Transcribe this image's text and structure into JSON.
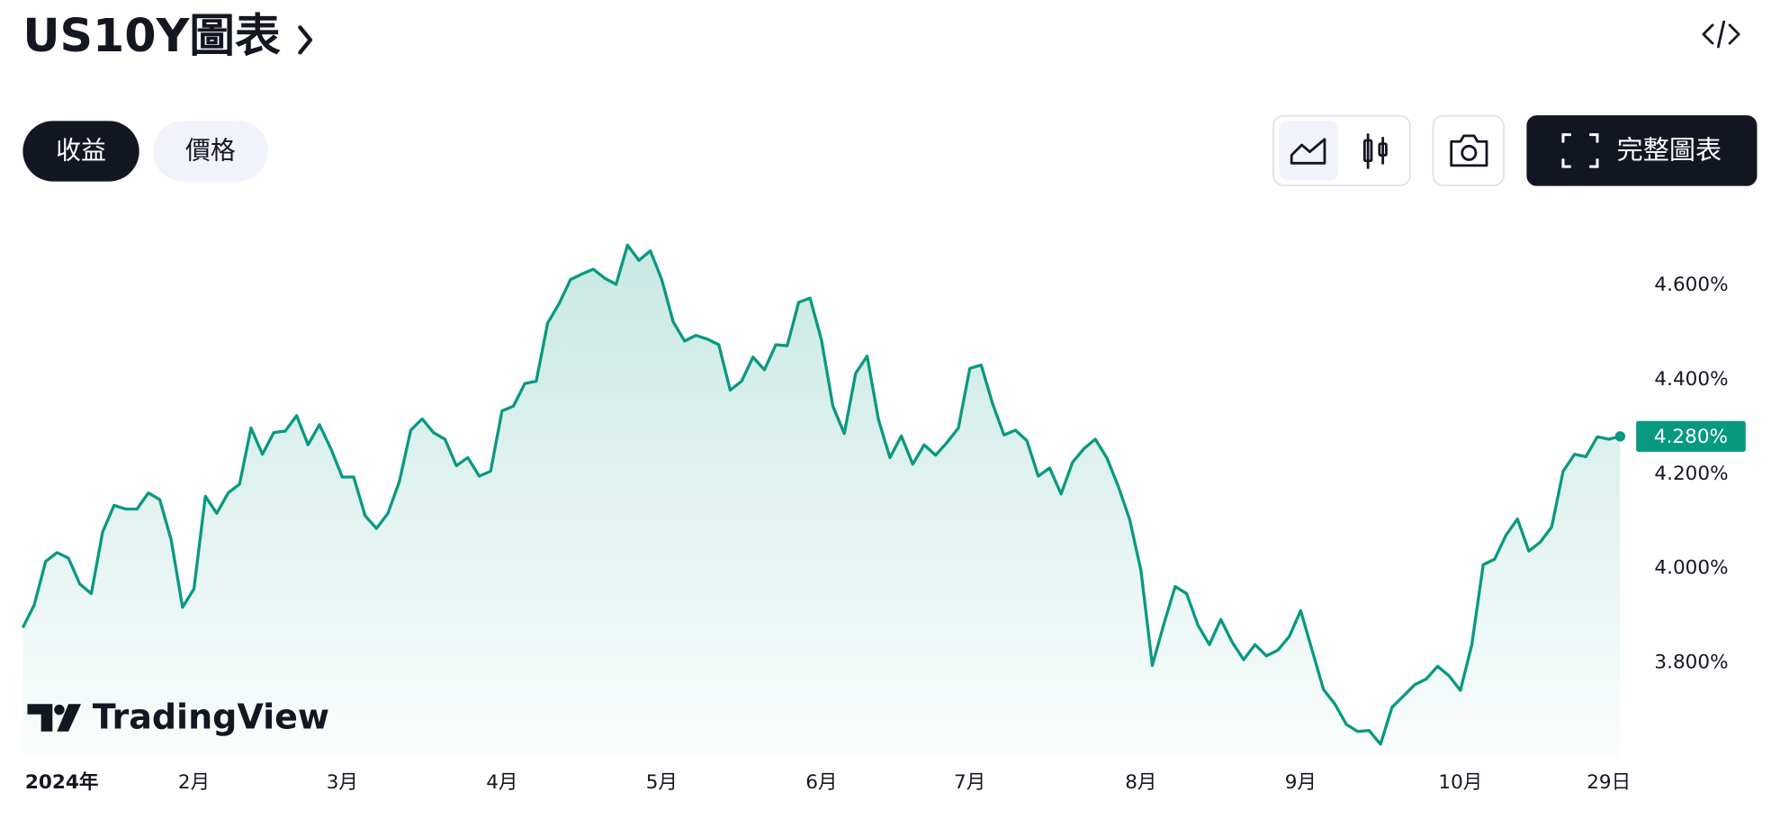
{
  "header": {
    "title": "US10Y圖表"
  },
  "tabs": [
    "收益",
    "價格"
  ],
  "full_chart_button": "完整圖表",
  "watermark": "TradingView",
  "chart_data": {
    "type": "area",
    "color": "#089981",
    "grid": false,
    "categories": [
      "2024年",
      null,
      null,
      null,
      null,
      null,
      null,
      null,
      null,
      null,
      null,
      null,
      null,
      null,
      null,
      "2月",
      null,
      null,
      null,
      null,
      null,
      null,
      null,
      null,
      null,
      null,
      null,
      null,
      "3月",
      null,
      null,
      null,
      null,
      null,
      null,
      null,
      null,
      null,
      null,
      null,
      null,
      null,
      "4月",
      null,
      null,
      null,
      null,
      null,
      null,
      null,
      null,
      null,
      null,
      null,
      null,
      null,
      "5月",
      null,
      null,
      null,
      null,
      null,
      null,
      null,
      null,
      null,
      null,
      null,
      null,
      null,
      "6月",
      null,
      null,
      null,
      null,
      null,
      null,
      null,
      null,
      null,
      null,
      null,
      null,
      "7月",
      null,
      null,
      null,
      null,
      null,
      null,
      null,
      null,
      null,
      null,
      null,
      null,
      null,
      null,
      "8月",
      null,
      null,
      null,
      null,
      null,
      null,
      null,
      null,
      null,
      null,
      null,
      null,
      null,
      "9月",
      null,
      null,
      null,
      null,
      null,
      null,
      null,
      null,
      null,
      null,
      null,
      null,
      null,
      "10月",
      null,
      null,
      null,
      null,
      null,
      null,
      null,
      null,
      null,
      null,
      null,
      null,
      "29日",
      null
    ],
    "values": [
      3.875,
      3.923,
      4.015,
      4.034,
      4.022,
      3.967,
      3.947,
      4.078,
      4.134,
      4.126,
      4.126,
      4.16,
      4.146,
      4.061,
      3.918,
      3.957,
      4.153,
      4.117,
      4.16,
      4.179,
      4.298,
      4.242,
      4.288,
      4.291,
      4.324,
      4.262,
      4.305,
      4.254,
      4.194,
      4.194,
      4.112,
      4.085,
      4.117,
      4.184,
      4.293,
      4.317,
      4.288,
      4.274,
      4.218,
      4.235,
      4.196,
      4.206,
      4.334,
      4.344,
      4.392,
      4.397,
      4.52,
      4.561,
      4.612,
      4.624,
      4.634,
      4.615,
      4.602,
      4.685,
      4.653,
      4.673,
      4.612,
      4.523,
      4.482,
      4.494,
      4.486,
      4.474,
      4.378,
      4.397,
      4.448,
      4.421,
      4.474,
      4.472,
      4.564,
      4.573,
      4.484,
      4.344,
      4.286,
      4.414,
      4.45,
      4.315,
      4.235,
      4.281,
      4.221,
      4.262,
      4.24,
      4.267,
      4.298,
      4.424,
      4.431,
      4.349,
      4.283,
      4.293,
      4.271,
      4.196,
      4.213,
      4.158,
      4.225,
      4.254,
      4.274,
      4.235,
      4.175,
      4.105,
      3.996,
      3.795,
      3.882,
      3.962,
      3.947,
      3.88,
      3.839,
      3.892,
      3.844,
      3.807,
      3.839,
      3.815,
      3.827,
      3.856,
      3.911,
      3.827,
      3.744,
      3.713,
      3.67,
      3.655,
      3.657,
      3.628,
      3.706,
      3.73,
      3.754,
      3.766,
      3.793,
      3.773,
      3.742,
      3.839,
      4.008,
      4.02,
      4.071,
      4.105,
      4.037,
      4.056,
      4.088,
      4.206,
      4.242,
      4.237,
      4.279,
      4.274,
      4.28
    ],
    "value_labels": [
      null,
      null,
      null,
      null,
      null,
      null,
      null,
      null,
      null,
      null,
      null,
      null,
      null,
      null,
      null,
      null,
      null,
      null,
      null,
      null,
      null,
      null,
      null,
      null,
      null,
      null,
      null,
      null,
      null,
      null,
      null,
      null,
      null,
      null,
      null,
      null,
      null,
      null,
      null,
      null,
      null,
      null,
      null,
      null,
      null,
      null,
      null,
      null,
      null,
      null,
      null,
      null,
      null,
      null,
      null,
      null,
      null,
      null,
      null,
      null,
      null,
      null,
      null,
      null,
      null,
      null,
      null,
      null,
      null,
      null,
      null,
      null,
      null,
      null,
      null,
      null,
      null,
      null,
      null,
      null,
      null,
      null,
      null,
      null,
      null,
      null,
      null,
      null,
      null,
      null,
      null,
      null,
      null,
      null,
      null,
      null,
      null,
      null,
      null,
      null,
      null,
      null,
      null,
      null,
      null,
      null,
      null,
      null,
      null,
      null,
      null,
      null,
      null,
      null,
      null,
      null,
      null,
      null,
      null,
      null,
      null,
      null,
      null,
      null,
      null,
      null,
      null,
      null,
      null,
      null,
      null,
      null,
      null,
      null,
      null,
      null,
      null,
      null,
      null,
      null,
      "4.280%"
    ],
    "ylim": [
      3.6,
      4.76
    ],
    "yticks": [
      {
        "value": 3.8,
        "label": "3.800%"
      },
      {
        "value": 4.0,
        "label": "4.000%"
      },
      {
        "value": 4.2,
        "label": "4.200%"
      },
      {
        "value": 4.4,
        "label": "4.400%"
      },
      {
        "value": 4.6,
        "label": "4.600%"
      }
    ]
  }
}
